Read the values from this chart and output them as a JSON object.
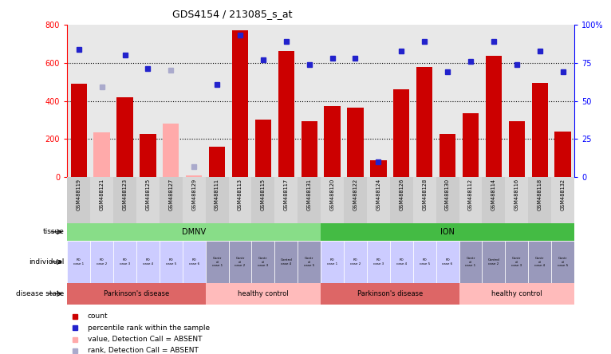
{
  "title": "GDS4154 / 213085_s_at",
  "samples": [
    "GSM488119",
    "GSM488121",
    "GSM488123",
    "GSM488125",
    "GSM488127",
    "GSM488129",
    "GSM488111",
    "GSM488113",
    "GSM488115",
    "GSM488117",
    "GSM488131",
    "GSM488120",
    "GSM488122",
    "GSM488124",
    "GSM488126",
    "GSM488128",
    "GSM488130",
    "GSM488112",
    "GSM488114",
    "GSM488116",
    "GSM488118",
    "GSM488132"
  ],
  "bar_values": [
    490,
    235,
    420,
    225,
    280,
    10,
    160,
    770,
    300,
    660,
    295,
    375,
    365,
    90,
    460,
    580,
    225,
    335,
    635,
    295,
    495,
    240
  ],
  "bar_absent": [
    false,
    true,
    false,
    false,
    true,
    true,
    false,
    false,
    false,
    false,
    false,
    false,
    false,
    false,
    false,
    false,
    false,
    false,
    false,
    false,
    false,
    false
  ],
  "rank_values": [
    84,
    59,
    80,
    71,
    70,
    7,
    61,
    93,
    77,
    89,
    74,
    78,
    78,
    10,
    83,
    89,
    69,
    76,
    89,
    74,
    83,
    69
  ],
  "rank_absent": [
    false,
    true,
    false,
    false,
    true,
    true,
    false,
    false,
    false,
    false,
    false,
    false,
    false,
    false,
    false,
    false,
    false,
    false,
    false,
    false,
    false,
    false
  ],
  "ylim_left": [
    0,
    800
  ],
  "ylim_right": [
    0,
    100
  ],
  "yticks_left": [
    0,
    200,
    400,
    600,
    800
  ],
  "yticks_right": [
    0,
    25,
    50,
    75,
    100
  ],
  "ytick_labels_right": [
    "0",
    "25",
    "50",
    "75",
    "100%"
  ],
  "bar_color_normal": "#cc0000",
  "bar_color_absent": "#ffaaaa",
  "rank_color_normal": "#2222cc",
  "rank_color_absent": "#aaaacc",
  "bg_color": "#e8e8e8",
  "sample_bg_color": "#cccccc",
  "tissue_dmnv_color": "#88dd88",
  "tissue_ion_color": "#44bb44",
  "tissue_regions": [
    {
      "text": "DMNV",
      "start": 0,
      "end": 10
    },
    {
      "text": "ION",
      "start": 11,
      "end": 21
    }
  ],
  "individual_cells": [
    {
      "text": "PD\ncase 1",
      "absent": false
    },
    {
      "text": "PD\ncase 2",
      "absent": false
    },
    {
      "text": "PD\ncase 3",
      "absent": false
    },
    {
      "text": "PD\ncase 4",
      "absent": false
    },
    {
      "text": "PD\ncase 5",
      "absent": false
    },
    {
      "text": "PD\ncase 6",
      "absent": false
    },
    {
      "text": "Contr\nol\ncase 1",
      "absent": false
    },
    {
      "text": "Contr\nol\ncase 2",
      "absent": false
    },
    {
      "text": "Contr\nol\ncase 3",
      "absent": false
    },
    {
      "text": "Control\ncase 4",
      "absent": false
    },
    {
      "text": "Contr\nol\ncase 5",
      "absent": false
    },
    {
      "text": "PD\ncase 1",
      "absent": false
    },
    {
      "text": "PD\ncase 2",
      "absent": false
    },
    {
      "text": "PD\ncase 3",
      "absent": false
    },
    {
      "text": "PD\ncase 4",
      "absent": false
    },
    {
      "text": "PD\ncase 5",
      "absent": false
    },
    {
      "text": "PD\ncase 6",
      "absent": false
    },
    {
      "text": "Contr\nol\ncase 1",
      "absent": false
    },
    {
      "text": "Control\ncase 2",
      "absent": false
    },
    {
      "text": "Contr\nol\ncase 3",
      "absent": false
    },
    {
      "text": "Contr\nol\ncase 4",
      "absent": false
    },
    {
      "text": "Contr\nol\ncase 5",
      "absent": false
    }
  ],
  "pd_cell_color": "#ccccff",
  "control_cell_color": "#9999bb",
  "disease_regions": [
    {
      "text": "Parkinson's disease",
      "start": 0,
      "end": 5,
      "color": "#dd6666"
    },
    {
      "text": "healthy control",
      "start": 6,
      "end": 10,
      "color": "#ffbbbb"
    },
    {
      "text": "Parkinson's disease",
      "start": 11,
      "end": 16,
      "color": "#dd6666"
    },
    {
      "text": "healthy control",
      "start": 17,
      "end": 21,
      "color": "#ffbbbb"
    }
  ],
  "legend_items": [
    {
      "color": "#cc0000",
      "label": "count"
    },
    {
      "color": "#2222cc",
      "label": "percentile rank within the sample"
    },
    {
      "color": "#ffaaaa",
      "label": "value, Detection Call = ABSENT"
    },
    {
      "color": "#aaaacc",
      "label": "rank, Detection Call = ABSENT"
    }
  ]
}
